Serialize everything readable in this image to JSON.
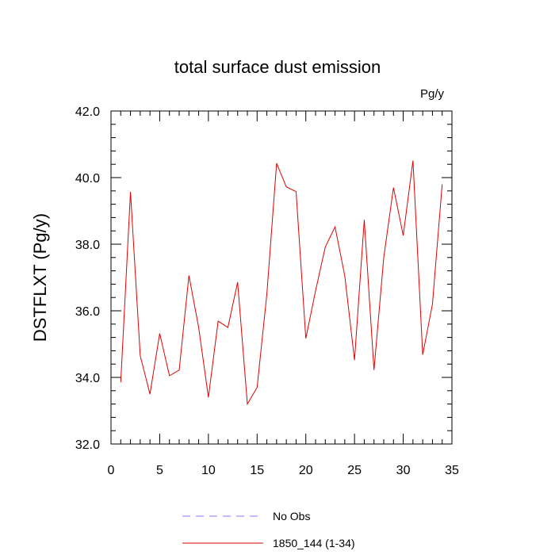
{
  "chart_data": {
    "type": "line",
    "title": "total surface dust emission",
    "units_label": "Pg/y",
    "xlabel": "",
    "ylabel": "DSTFLXT  (Pg/y)",
    "xlim": [
      0,
      35
    ],
    "ylim": [
      32.0,
      42.0
    ],
    "x_ticks": [
      "0",
      "5",
      "10",
      "15",
      "20",
      "25",
      "30",
      "35"
    ],
    "y_ticks": [
      "32.0",
      "34.0",
      "36.0",
      "38.0",
      "40.0",
      "42.0"
    ],
    "grid": false,
    "legend_position": "bottom-center",
    "legend": [
      {
        "label": "No Obs",
        "style": "dashed",
        "color": "#7a7aff"
      },
      {
        "label": "1850_144 (1-34)",
        "style": "solid",
        "color": "#e00000"
      }
    ],
    "series": [
      {
        "name": "1850_144 (1-34)",
        "color": "#e00000",
        "x": [
          1,
          2,
          3,
          4,
          5,
          6,
          7,
          8,
          9,
          10,
          11,
          12,
          13,
          14,
          15,
          16,
          17,
          18,
          19,
          20,
          21,
          22,
          23,
          24,
          25,
          26,
          27,
          28,
          29,
          30,
          31,
          32,
          33,
          34
        ],
        "values": [
          33.85,
          39.57,
          34.65,
          33.5,
          35.32,
          34.05,
          34.22,
          37.06,
          35.5,
          33.4,
          35.69,
          35.5,
          36.86,
          33.2,
          33.7,
          36.5,
          40.43,
          39.72,
          39.58,
          35.17,
          36.6,
          37.92,
          38.52,
          37.05,
          34.52,
          38.73,
          34.22,
          37.6,
          39.7,
          38.26,
          40.51,
          34.68,
          36.2,
          39.8
        ]
      }
    ]
  }
}
